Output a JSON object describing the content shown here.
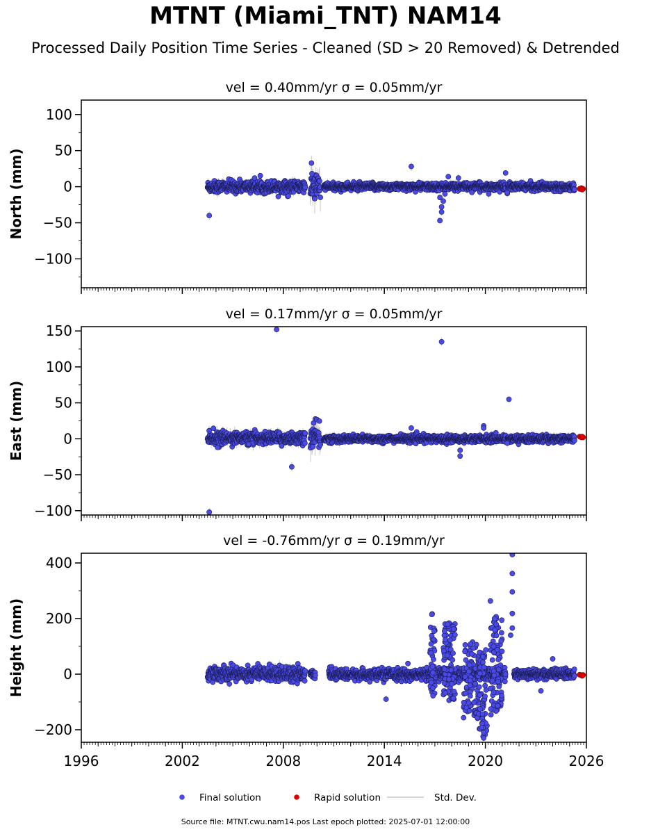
{
  "title": "MTNT (Miami_TNT) NAM14",
  "subtitle": "Processed Daily Position Time Series - Cleaned (SD > 20 Removed) & Detrended",
  "footer": "Source file: MTNT.cwu.nam14.pos  Last epoch plotted: 2025-07-01 12:00:00",
  "colors": {
    "final": "#4a4ae8",
    "final_edge": "#1a1a50",
    "rapid": "#e00000",
    "stddev": "#c8c8c8"
  },
  "legend": [
    {
      "label": "Final solution",
      "kind": "marker",
      "color": "#4a4ae8"
    },
    {
      "label": "Rapid solution",
      "kind": "marker",
      "color": "#e00000"
    },
    {
      "label": "Std. Dev.",
      "kind": "line",
      "color": "#c8c8c8"
    }
  ],
  "chart_data": [
    {
      "type": "scatter",
      "title": "vel = 0.40mm/yr   σ = 0.05mm/yr",
      "ylabel": "North (mm)",
      "xlim": [
        1996,
        2026
      ],
      "ylim": [
        -140,
        120
      ],
      "yticks": [
        100,
        50,
        0,
        -50,
        -100
      ],
      "ytick_labels": [
        "100",
        "50",
        "0",
        "−50",
        "−100"
      ],
      "xticks": [
        1996,
        2002,
        2008,
        2014,
        2020,
        2026
      ],
      "show_xtick_labels": false,
      "grid": false,
      "segments": [
        {
          "x0": 2003.5,
          "x1": 2009.3,
          "center": 0,
          "spread": 4,
          "sd": 5
        },
        {
          "x0": 2009.6,
          "x1": 2010.2,
          "center": 0,
          "spread": 10,
          "sd": 15
        },
        {
          "x0": 2010.4,
          "x1": 2021.2,
          "center": 0,
          "spread": 2.5,
          "sd": 4
        },
        {
          "x0": 2021.3,
          "x1": 2025.3,
          "center": 0,
          "spread": 2.5,
          "sd": 4
        }
      ],
      "outliers": [
        [
          2003.6,
          -40
        ],
        [
          2008.3,
          -13
        ],
        [
          2015.6,
          28
        ],
        [
          2017.3,
          -47
        ],
        [
          2017.4,
          -35
        ],
        [
          2017.4,
          -28
        ],
        [
          2017.5,
          -20
        ],
        [
          2017.3,
          -15
        ],
        [
          2017.6,
          -10
        ],
        [
          2017.8,
          14
        ],
        [
          2018.4,
          12
        ],
        [
          2019.2,
          -8
        ],
        [
          2020.2,
          -10
        ],
        [
          2021.2,
          19
        ],
        [
          2021.3,
          -8
        ],
        [
          2009.7,
          18
        ]
      ],
      "rapid": [
        [
          2025.6,
          -3
        ],
        [
          2025.7,
          -2
        ],
        [
          2025.8,
          -3
        ],
        [
          2025.75,
          -4
        ]
      ]
    },
    {
      "type": "scatter",
      "title": "vel = 0.17mm/yr   σ = 0.05mm/yr",
      "ylabel": "East (mm)",
      "xlim": [
        1996,
        2026
      ],
      "ylim": [
        -106,
        156
      ],
      "yticks": [
        150,
        100,
        50,
        0,
        -50,
        -100
      ],
      "ytick_labels": [
        "150",
        "100",
        "50",
        "0",
        "−50",
        "−100"
      ],
      "xticks": [
        1996,
        2002,
        2008,
        2014,
        2020,
        2026
      ],
      "show_xtick_labels": false,
      "grid": false,
      "segments": [
        {
          "x0": 2003.5,
          "x1": 2009.3,
          "center": 1,
          "spread": 4,
          "sd": 6
        },
        {
          "x0": 2009.6,
          "x1": 2010.2,
          "center": 2,
          "spread": 9,
          "sd": 14
        },
        {
          "x0": 2010.4,
          "x1": 2021.2,
          "center": 0,
          "spread": 2.5,
          "sd": 4
        },
        {
          "x0": 2021.3,
          "x1": 2025.3,
          "center": 0,
          "spread": 2.5,
          "sd": 4
        }
      ],
      "outliers": [
        [
          2003.6,
          -102
        ],
        [
          2004.1,
          -12
        ],
        [
          2007.6,
          152
        ],
        [
          2007.9,
          -10
        ],
        [
          2008.5,
          -39
        ],
        [
          2015.6,
          15
        ],
        [
          2017.4,
          135
        ],
        [
          2018.5,
          -24
        ],
        [
          2018.5,
          -16
        ],
        [
          2019.9,
          18
        ],
        [
          2019.9,
          15
        ],
        [
          2021.4,
          55
        ],
        [
          2021.3,
          -6
        ],
        [
          2009.8,
          22
        ]
      ],
      "rapid": [
        [
          2025.6,
          3
        ],
        [
          2025.7,
          2
        ],
        [
          2025.8,
          2
        ],
        [
          2025.75,
          3
        ]
      ]
    },
    {
      "type": "scatter",
      "title": "vel = -0.76mm/yr   σ = 0.19mm/yr",
      "ylabel": "Height (mm)",
      "xlim": [
        1996,
        2026
      ],
      "ylim": [
        -245,
        435
      ],
      "yticks": [
        400,
        200,
        0,
        -200
      ],
      "ytick_labels": [
        "400",
        "200",
        "0",
        "−200"
      ],
      "xticks": [
        1996,
        2002,
        2008,
        2014,
        2020,
        2026
      ],
      "xtick_labels": [
        "1996",
        "2002",
        "2008",
        "2014",
        "2020",
        "2026"
      ],
      "show_xtick_labels": true,
      "grid": false,
      "segments": [
        {
          "x0": 2003.5,
          "x1": 2009.3,
          "center": 2,
          "spread": 13,
          "sd": 14
        },
        {
          "x0": 2009.6,
          "x1": 2009.9,
          "center": 0,
          "spread": 6,
          "sd": 8
        },
        {
          "x0": 2010.7,
          "x1": 2016.4,
          "center": -2,
          "spread": 9,
          "sd": 10
        },
        {
          "x0": 2016.4,
          "x1": 2021.2,
          "center": 0,
          "spread": 12,
          "sd": 12
        },
        {
          "x0": 2021.7,
          "x1": 2025.3,
          "center": 0,
          "spread": 9,
          "sd": 10
        }
      ],
      "clusters": [
        {
          "x0": 2016.7,
          "x1": 2017.0,
          "ymin": -90,
          "ymax": 220,
          "n": 40
        },
        {
          "x0": 2017.5,
          "x1": 2018.2,
          "ymin": -100,
          "ymax": 190,
          "n": 90
        },
        {
          "x0": 2018.7,
          "x1": 2019.6,
          "ymin": -160,
          "ymax": 130,
          "n": 80
        },
        {
          "x0": 2019.6,
          "x1": 2020.1,
          "ymin": -230,
          "ymax": 90,
          "n": 50
        },
        {
          "x0": 2020.3,
          "x1": 2021.0,
          "ymin": -160,
          "ymax": 220,
          "n": 80
        }
      ],
      "outliers": [
        [
          2014.1,
          -90
        ],
        [
          2015.4,
          38
        ],
        [
          2020.3,
          263
        ],
        [
          2021.6,
          430
        ],
        [
          2021.6,
          362
        ],
        [
          2021.6,
          296
        ],
        [
          2021.6,
          218
        ],
        [
          2021.6,
          166
        ],
        [
          2021.5,
          140
        ],
        [
          2023.3,
          -60
        ],
        [
          2024.0,
          55
        ],
        [
          2019.9,
          -230
        ],
        [
          2019.9,
          -210
        ]
      ],
      "rapid": [
        [
          2025.6,
          -2
        ],
        [
          2025.7,
          -4
        ],
        [
          2025.8,
          -3
        ],
        [
          2025.75,
          -6
        ]
      ]
    }
  ]
}
